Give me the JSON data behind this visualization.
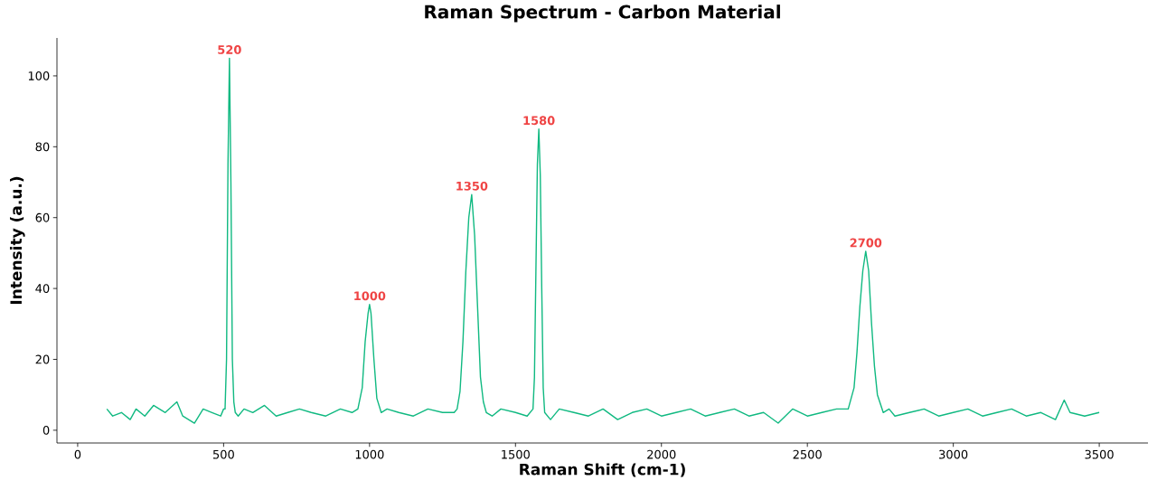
{
  "chart_data": {
    "type": "line",
    "title": "Raman Spectrum - Carbon Material",
    "xlabel": "Raman Shift (cm-1)",
    "ylabel": "Intensity (a.u.)",
    "x": [
      100,
      120,
      150,
      180,
      200,
      230,
      260,
      300,
      340,
      360,
      400,
      430,
      460,
      490,
      500,
      505,
      510,
      515,
      520,
      525,
      530,
      535,
      540,
      550,
      570,
      600,
      640,
      680,
      720,
      760,
      800,
      850,
      900,
      940,
      960,
      975,
      985,
      995,
      1000,
      1005,
      1015,
      1025,
      1040,
      1060,
      1100,
      1150,
      1200,
      1250,
      1290,
      1300,
      1310,
      1320,
      1330,
      1340,
      1350,
      1360,
      1370,
      1380,
      1390,
      1400,
      1420,
      1450,
      1500,
      1540,
      1560,
      1565,
      1570,
      1575,
      1580,
      1585,
      1590,
      1595,
      1600,
      1620,
      1650,
      1700,
      1750,
      1800,
      1850,
      1900,
      1950,
      2000,
      2050,
      2100,
      2150,
      2200,
      2250,
      2300,
      2350,
      2400,
      2450,
      2500,
      2550,
      2600,
      2640,
      2660,
      2670,
      2680,
      2690,
      2700,
      2710,
      2720,
      2730,
      2740,
      2760,
      2780,
      2800,
      2850,
      2900,
      2950,
      3000,
      3050,
      3100,
      3150,
      3200,
      3250,
      3300,
      3350,
      3380,
      3400,
      3450,
      3500
    ],
    "series": [
      {
        "color": "#10b981",
        "values": [
          6,
          4,
          5,
          3,
          6,
          4,
          7,
          5,
          8,
          4,
          2,
          6,
          5,
          4,
          6,
          6,
          20,
          75,
          105,
          70,
          20,
          8,
          5,
          4,
          6,
          5,
          7,
          4,
          5,
          6,
          5,
          4,
          6,
          5,
          6,
          12,
          25,
          33,
          35.5,
          33,
          20,
          9,
          5,
          6,
          5,
          4,
          6,
          5,
          5,
          6,
          11,
          25,
          45,
          60,
          66.5,
          55,
          35,
          15,
          8,
          5,
          4,
          6,
          5,
          4,
          6,
          15,
          45,
          75,
          85,
          72,
          40,
          12,
          5,
          3,
          6,
          5,
          4,
          6,
          3,
          5,
          6,
          4,
          5,
          6,
          4,
          5,
          6,
          4,
          5,
          2,
          6,
          4,
          5,
          6,
          6,
          12,
          22,
          35,
          45,
          50.5,
          45,
          30,
          18,
          10,
          5,
          6,
          4,
          5,
          6,
          4,
          5,
          6,
          4,
          5,
          6,
          4,
          5,
          3,
          8.5,
          5,
          4,
          5
        ]
      }
    ],
    "xlim": [
      -71,
      3667
    ],
    "ylim": [
      -3.6,
      110.7
    ],
    "xticks": [
      0,
      500,
      1000,
      1500,
      2000,
      2500,
      3000,
      3500
    ],
    "yticks": [
      0,
      20,
      40,
      60,
      80,
      100
    ],
    "marker": "none",
    "line_style": "solid",
    "grid": false,
    "annotations": [
      {
        "text": "520",
        "x": 520,
        "y": 105
      },
      {
        "text": "1000",
        "x": 1000,
        "y": 35.5
      },
      {
        "text": "1350",
        "x": 1350,
        "y": 66.5
      },
      {
        "text": "1580",
        "x": 1580,
        "y": 85
      },
      {
        "text": "2700",
        "x": 2700,
        "y": 50.5
      }
    ]
  }
}
